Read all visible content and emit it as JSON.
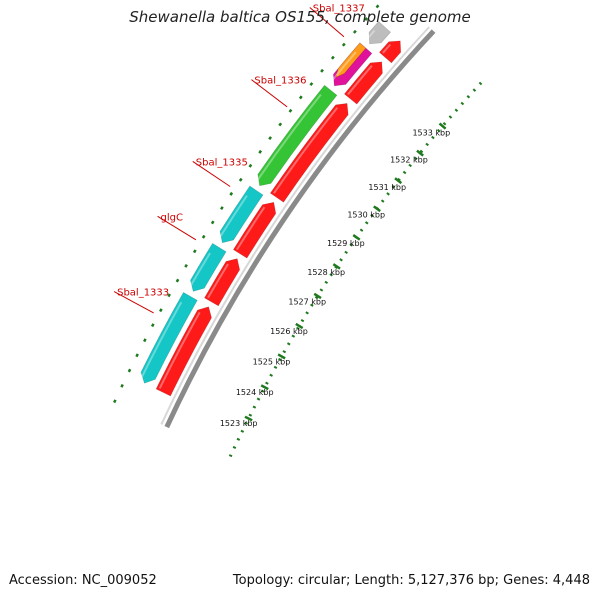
{
  "title": "Shewanella baltica OS155, complete genome",
  "footer": {
    "accession": "Accession: NC_009052",
    "summary": "Topology: circular; Length: 5,127,376 bp; Genes: 4,448"
  },
  "colors": {
    "backbone": "#8a8a8a",
    "ruler_dots": "#1f7a1f",
    "label": "#cc0000",
    "forward_cds": "#ff1a1a",
    "reverse_cds_cyan": "#15c6c6",
    "reverse_cds_green": "#35c435",
    "reverse_cds_magenta": "#e0119a",
    "reverse_cds_orange": "#ff9a1a",
    "other": "#bdbdbd"
  },
  "ruler": {
    "unit": "kbp",
    "ticks": [
      "1523 kbp",
      "1524 kbp",
      "1525 kbp",
      "1526 kbp",
      "1527 kbp",
      "1528 kbp",
      "1529 kbp",
      "1530 kbp",
      "1531 kbp",
      "1532 kbp",
      "1533 kbp"
    ]
  },
  "gene_labels": [
    {
      "name": "Sbal_1333",
      "kbp": 1524.35
    },
    {
      "name": "glgC",
      "kbp": 1526.55
    },
    {
      "name": "Sbal_1335",
      "kbp": 1528.2
    },
    {
      "name": "Sbal_1336",
      "kbp": 1530.75
    },
    {
      "name": "Sbal_1337",
      "kbp": 1533.1
    }
  ],
  "forward_features": [
    {
      "start": 1522.6,
      "end": 1525.2,
      "color": "forward_cds"
    },
    {
      "start": 1525.35,
      "end": 1526.7,
      "color": "forward_cds"
    },
    {
      "start": 1526.85,
      "end": 1528.5,
      "color": "forward_cds"
    },
    {
      "start": 1528.65,
      "end": 1531.8,
      "color": "forward_cds"
    },
    {
      "start": 1531.95,
      "end": 1533.25,
      "color": "forward_cds"
    },
    {
      "start": 1533.4,
      "end": 1534.0,
      "color": "forward_cds"
    }
  ],
  "reverse_features": [
    {
      "start": 1522.6,
      "end": 1525.2,
      "color": "reverse_cds_cyan"
    },
    {
      "start": 1525.35,
      "end": 1526.7,
      "color": "reverse_cds_cyan"
    },
    {
      "start": 1526.85,
      "end": 1528.5,
      "color": "reverse_cds_cyan"
    },
    {
      "start": 1528.65,
      "end": 1531.8,
      "color": "reverse_cds_green"
    },
    {
      "start": 1531.95,
      "end": 1533.25,
      "color": "reverse_cds_magenta"
    },
    {
      "start": 1533.4,
      "end": 1534.0,
      "color": "other"
    }
  ]
}
